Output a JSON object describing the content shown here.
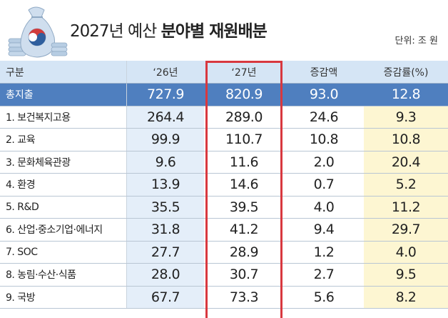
{
  "header": {
    "title_plain": "2027년 예산",
    "title_bold": "분야별 재원배분",
    "unit": "단위: 조 원"
  },
  "table": {
    "columns": [
      "구분",
      "‘26년",
      "‘27년",
      "증감액",
      "증감률(%)"
    ],
    "total": {
      "label": "총지출",
      "y26": "727.9",
      "y27": "820.9",
      "diff": "93.0",
      "rate": "12.8"
    },
    "rows": [
      {
        "label": "1. 보건복지고용",
        "y26": "264.4",
        "y27": "289.0",
        "diff": "24.6",
        "rate": "9.3"
      },
      {
        "label": "2. 교육",
        "y26": "99.9",
        "y27": "110.7",
        "diff": "10.8",
        "rate": "10.8"
      },
      {
        "label": "3. 문화체육관광",
        "y26": "9.6",
        "y27": "11.6",
        "diff": "2.0",
        "rate": "20.4"
      },
      {
        "label": "4. 환경",
        "y26": "13.9",
        "y27": "14.6",
        "diff": "0.7",
        "rate": "5.2"
      },
      {
        "label": "5. R&D",
        "y26": "35.5",
        "y27": "39.5",
        "diff": "4.0",
        "rate": "11.2"
      },
      {
        "label": "6. 산업·중소기업·에너지",
        "y26": "31.8",
        "y27": "41.2",
        "diff": "9.4",
        "rate": "29.7"
      },
      {
        "label": "7. SOC",
        "y26": "27.7",
        "y27": "28.9",
        "diff": "1.2",
        "rate": "4.0"
      },
      {
        "label": "8. 농림·수산·식품",
        "y26": "28.0",
        "y27": "30.7",
        "diff": "2.7",
        "rate": "9.5"
      },
      {
        "label": "9. 국방",
        "y26": "67.7",
        "y27": "73.3",
        "diff": "5.6",
        "rate": "8.2"
      }
    ]
  },
  "colors": {
    "highlight_border": "#d8383f",
    "total_row": "#4f7fbf",
    "header_row": "#d5e5f5",
    "col_26": "#e4eef9",
    "col_rate": "#fdf6d2"
  },
  "icons": {
    "logo": "money-bag-icon"
  }
}
